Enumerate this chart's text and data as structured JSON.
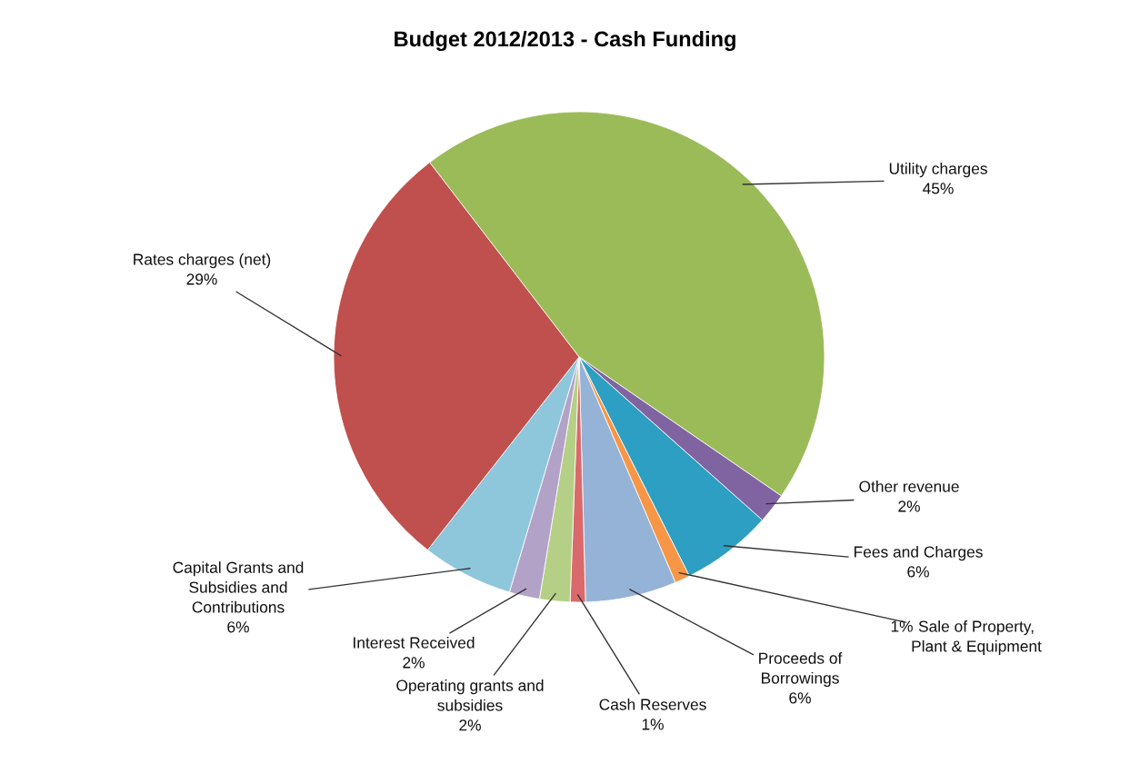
{
  "chart_data": {
    "type": "pie",
    "title": "Budget 2012/2013 - Cash Funding",
    "categories": [
      "Utility charges",
      "Other revenue",
      "Fees and Charges",
      "Sale of Property, Plant & Equipment",
      "Proceeds of Borrowings",
      "Cash Reserves",
      "Operating grants and subsidies",
      "Interest Received",
      "Capital Grants and Subsidies and Contributions",
      "Rates charges (net)"
    ],
    "values": [
      45,
      2,
      6,
      1,
      6,
      1,
      2,
      2,
      6,
      29
    ],
    "colors": [
      "#9bbb59",
      "#8064a2",
      "#2c9fc2",
      "#f79646",
      "#95b3d7",
      "#d9696a",
      "#b6cf86",
      "#b3a2c7",
      "#8ec6dc",
      "#c0504d"
    ],
    "value_labels": [
      "45%",
      "2%",
      "6%",
      "1%",
      "6%",
      "1%",
      "2%",
      "2%",
      "6%",
      "29%"
    ]
  }
}
